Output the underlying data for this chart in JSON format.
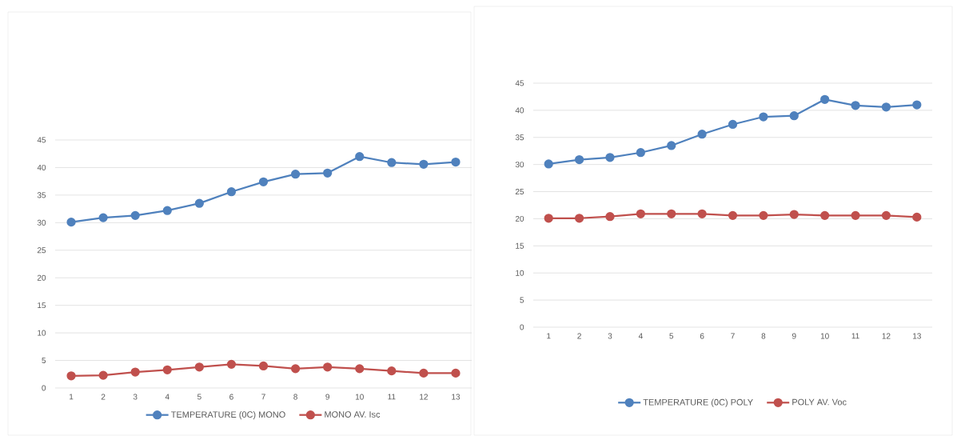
{
  "chart_data": [
    {
      "type": "line",
      "categories": [
        "1",
        "2",
        "3",
        "4",
        "5",
        "6",
        "7",
        "8",
        "9",
        "10",
        "11",
        "12",
        "13"
      ],
      "series": [
        {
          "name": "TEMPERATURE (0C) MONO",
          "color": "#4f81bd",
          "values": [
            30.1,
            30.9,
            31.3,
            32.2,
            33.5,
            35.6,
            37.4,
            38.8,
            39.0,
            42.0,
            40.9,
            40.6,
            41.0
          ]
        },
        {
          "name": "MONO AV. Isc",
          "color": "#c0504d",
          "values": [
            2.2,
            2.3,
            2.9,
            3.3,
            3.8,
            4.3,
            4.0,
            3.5,
            3.8,
            3.5,
            3.1,
            2.7,
            2.7
          ]
        }
      ],
      "ylim": [
        0,
        45
      ],
      "yticks": [
        0,
        5,
        10,
        15,
        20,
        25,
        30,
        35,
        40,
        45
      ],
      "grid": "y",
      "legend": "bottom",
      "marker": "circle"
    },
    {
      "type": "line",
      "categories": [
        "1",
        "2",
        "3",
        "4",
        "5",
        "6",
        "7",
        "8",
        "9",
        "10",
        "11",
        "12",
        "13"
      ],
      "series": [
        {
          "name": "TEMPERATURE (0C) POLY",
          "color": "#4f81bd",
          "values": [
            30.1,
            30.9,
            31.3,
            32.2,
            33.5,
            35.6,
            37.4,
            38.8,
            39.0,
            42.0,
            40.9,
            40.6,
            41.0
          ]
        },
        {
          "name": "POLY AV. Voc",
          "color": "#c0504d",
          "values": [
            20.1,
            20.1,
            20.4,
            20.9,
            20.9,
            20.9,
            20.6,
            20.6,
            20.8,
            20.6,
            20.6,
            20.6,
            20.3
          ]
        }
      ],
      "ylim": [
        0,
        45
      ],
      "yticks": [
        0,
        5,
        10,
        15,
        20,
        25,
        30,
        35,
        40,
        45
      ],
      "grid": "y",
      "legend": "bottom",
      "marker": "circle"
    }
  ]
}
